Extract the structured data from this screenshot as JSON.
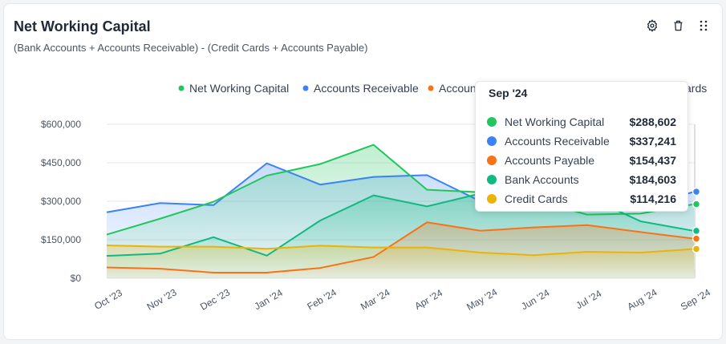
{
  "header": {
    "title": "Net Working Capital",
    "subtitle": "(Bank Accounts + Accounts Receivable) - (Credit Cards + Accounts Payable)"
  },
  "toolbar": {
    "settings_icon": "gear-icon",
    "delete_icon": "trash-icon",
    "more_icon": "vertical-dots-icon"
  },
  "tooltip": {
    "title": "Sep '24",
    "rows": [
      {
        "label": "Net Working Capital",
        "value": "$288,602",
        "color": "#22c55e"
      },
      {
        "label": "Accounts Receivable",
        "value": "$337,241",
        "color": "#3b82f6"
      },
      {
        "label": "Accounts Payable",
        "value": "$154,437",
        "color": "#f97316"
      },
      {
        "label": "Bank Accounts",
        "value": "$184,603",
        "color": "#10b981"
      },
      {
        "label": "Credit Cards",
        "value": "$114,216",
        "color": "#eab308"
      }
    ]
  },
  "chart_data": {
    "type": "area",
    "categories": [
      "Oct '23",
      "Nov '23",
      "Dec '23",
      "Jan '24",
      "Feb '24",
      "Mar '24",
      "Apr '24",
      "May '24",
      "Jun '24",
      "Jul '24",
      "Aug '24",
      "Sep '24"
    ],
    "y_ticks": [
      {
        "value": 0,
        "label": "$0"
      },
      {
        "value": 150000,
        "label": "$150,000"
      },
      {
        "value": 300000,
        "label": "$300,000"
      },
      {
        "value": 450000,
        "label": "$450,000"
      },
      {
        "value": 600000,
        "label": "$600,000"
      }
    ],
    "ylim": [
      0,
      600000
    ],
    "grid": true,
    "legend_position": "top",
    "legend_visible": [
      {
        "name": "Net Working Capital",
        "color": "#22c55e"
      },
      {
        "name": "Accounts Receivable",
        "color": "#3b82f6"
      },
      {
        "name": "Accounts Payable",
        "color": "#f97316",
        "label_visible": "Accoun"
      },
      {
        "name": "Credit Cards",
        "color": "#eab308",
        "label_visible": "ards",
        "marker_hidden": true
      }
    ],
    "series": [
      {
        "name": "Accounts Receivable",
        "color": "#3b82f6",
        "fill": true,
        "values": [
          257000,
          293000,
          285000,
          448000,
          365000,
          395000,
          402000,
          300000,
          272000,
          270000,
          272000,
          337241
        ]
      },
      {
        "name": "Net Working Capital",
        "color": "#22c55e",
        "fill": true,
        "values": [
          170000,
          232000,
          298000,
          400000,
          445000,
          520000,
          345000,
          335000,
          305000,
          248000,
          252000,
          288602
        ]
      },
      {
        "name": "Bank Accounts",
        "color": "#10b981",
        "fill": true,
        "values": [
          87000,
          96000,
          160000,
          88000,
          225000,
          323000,
          280000,
          330000,
          310000,
          318000,
          222000,
          184603
        ]
      },
      {
        "name": "Accounts Payable",
        "color": "#f97316",
        "fill": true,
        "values": [
          42000,
          37000,
          22000,
          22000,
          40000,
          83000,
          218000,
          185000,
          198000,
          207000,
          180000,
          154437
        ]
      },
      {
        "name": "Credit Cards",
        "color": "#eab308",
        "fill": true,
        "values": [
          128000,
          123000,
          123000,
          115000,
          127000,
          120000,
          120000,
          100000,
          90000,
          103000,
          100000,
          114216
        ]
      }
    ]
  }
}
